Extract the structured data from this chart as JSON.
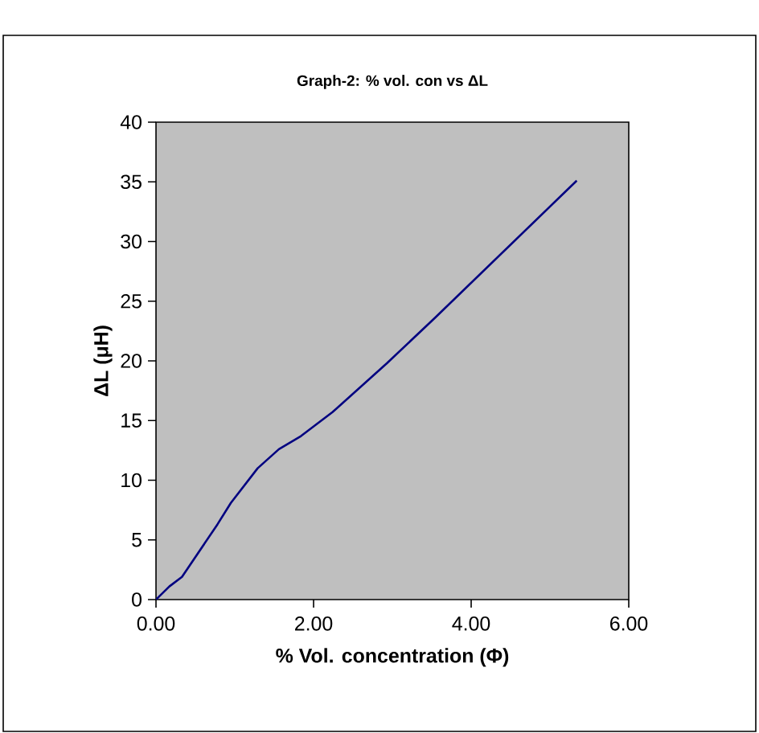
{
  "chart_data": {
    "type": "line",
    "title": "Graph-2:  % vol. con vs ΔL",
    "xlabel": "% Vol. concentration (Φ)",
    "ylabel": "ΔL (μH)",
    "series": [
      {
        "color": "#000080",
        "x": [
          0,
          0.17,
          0.33,
          0.78,
          0.95,
          1.29,
          1.56,
          1.84,
          2.24,
          2.93,
          3.54,
          5.34
        ],
        "values": [
          0,
          1.1,
          1.9,
          6.3,
          8.1,
          11.0,
          12.6,
          13.7,
          15.7,
          19.8,
          23.6,
          35.1
        ]
      }
    ],
    "xlim": [
      0,
      6
    ],
    "ylim": [
      0,
      40
    ],
    "xticks": [
      {
        "value": 0,
        "label": "0.00"
      },
      {
        "value": 2,
        "label": "2.00"
      },
      {
        "value": 4,
        "label": "4.00"
      },
      {
        "value": 6,
        "label": "6.00"
      }
    ],
    "yticks": [
      0,
      5,
      10,
      15,
      20,
      25,
      30,
      35,
      40
    ]
  }
}
